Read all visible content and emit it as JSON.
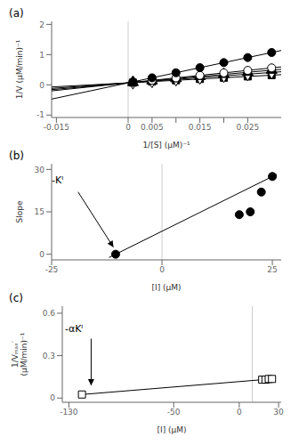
{
  "chart_data": [
    {
      "type": "scatter",
      "title": "(a)",
      "x_label": "1/[S] (μM)⁻¹",
      "y_label": "1/V (μM/min)⁻¹",
      "xlim": [
        -0.016,
        0.032
      ],
      "ylim": [
        -1.08,
        2.1
      ],
      "xticks": [
        -0.015,
        0,
        0.005,
        {
          "value": 0.01,
          "label": null
        },
        0.015,
        {
          "value": 0.02,
          "label": null
        },
        0.025
      ],
      "yticks": [
        -1,
        0,
        1,
        2
      ],
      "grid": false,
      "reference_line_x": 0,
      "series": [
        {
          "type": "line",
          "line_style": "solid",
          "color": "#000000",
          "x": [
            -0.016,
            0.032
          ],
          "values": [
            -0.071,
            0.337
          ]
        },
        {
          "type": "scatter",
          "marker": "square",
          "color": "#000000",
          "x": [
            0.001,
            0.005,
            0.01,
            0.015,
            0.02,
            0.025,
            0.03
          ],
          "values": [
            0.0735,
            0.1075,
            0.15,
            0.1925,
            0.235,
            0.2775,
            0.32
          ]
        },
        {
          "type": "line",
          "line_style": "solid",
          "color": "#000000",
          "x": [
            -0.016,
            0.032
          ],
          "values": [
            -0.119,
            0.433
          ]
        },
        {
          "type": "scatter",
          "marker": "diamond_open",
          "color": "#000000",
          "x": [
            0.001,
            0.005,
            0.01,
            0.015,
            0.02,
            0.025,
            0.03
          ],
          "values": [
            0.0765,
            0.1225,
            0.18,
            0.2375,
            0.295,
            0.3525,
            0.41
          ]
        },
        {
          "type": "line",
          "line_style": "solid",
          "color": "#000000",
          "x": [
            -0.016,
            0.032
          ],
          "values": [
            -0.159,
            0.513
          ]
        },
        {
          "type": "scatter",
          "marker": "triangle",
          "color": "#000000",
          "x": [
            0.001,
            0.005,
            0.01,
            0.015,
            0.02,
            0.025,
            0.03
          ],
          "values": [
            0.079,
            0.135,
            0.205,
            0.275,
            0.345,
            0.415,
            0.485
          ]
        },
        {
          "type": "line",
          "line_style": "solid",
          "color": "#000000",
          "x": [
            -0.016,
            0.032
          ],
          "values": [
            -0.199,
            0.593
          ]
        },
        {
          "type": "scatter",
          "marker": "circle_open",
          "color": "#000000",
          "x": [
            0.001,
            0.005,
            0.01,
            0.015,
            0.02,
            0.025,
            0.03
          ],
          "values": [
            0.0815,
            0.1475,
            0.23,
            0.3125,
            0.395,
            0.4775,
            0.56
          ]
        },
        {
          "type": "line",
          "line_style": "solid",
          "color": "#000000",
          "x": [
            -0.016,
            0.032
          ],
          "values": [
            -0.471,
            1.137
          ]
        },
        {
          "type": "scatter",
          "marker": "circle",
          "color": "#000000",
          "x": [
            0.001,
            0.005,
            0.01,
            0.015,
            0.02,
            0.025,
            0.03
          ],
          "values": [
            0.0985,
            0.2325,
            0.4,
            0.5675,
            0.735,
            0.9025,
            1.07
          ]
        }
      ],
      "annotations": [],
      "arrows": []
    },
    {
      "type": "scatter",
      "title": "(b)",
      "x_label": "[I] (μM)",
      "y_label": "Slope",
      "xlim": [
        -25,
        27
      ],
      "ylim": [
        -2,
        32
      ],
      "xticks": [
        -25,
        0,
        25
      ],
      "yticks": [
        0,
        15,
        30
      ],
      "grid": false,
      "reference_line_x": 0,
      "series": [
        {
          "type": "line",
          "line_style": "solid",
          "color": "#000000",
          "x": [
            -12,
            26
          ],
          "values": [
            -1.161972,
            28.274648
          ]
        },
        {
          "type": "scatter",
          "marker": "circle",
          "color": "#000000",
          "x": [
            17.5,
            20.0,
            22.5,
            25.0
          ],
          "values": [
            14.0,
            15.0,
            22.0,
            27.5
          ]
        },
        {
          "type": "scatter",
          "marker": "circle",
          "color": "#000000",
          "x": [
            -10.5
          ],
          "values": [
            0.0
          ]
        }
      ],
      "annotations": [
        {
          "text": "-Kᴵ",
          "x": -25,
          "y": 25
        }
      ],
      "arrows": [
        {
          "x1": -19,
          "y1": 22,
          "x2": -11,
          "y2": 2.5,
          "color": "#000000"
        }
      ]
    },
    {
      "type": "scatter",
      "title": "(c)",
      "x_label": "[I] (μM)",
      "y_label": "1/Vₘₐₓ′\n(μM/min)⁻¹",
      "xlim": [
        -135,
        32
      ],
      "ylim": [
        -0.03,
        0.65
      ],
      "xticks": [
        -130,
        -50,
        0,
        30
      ],
      "yticks": [
        0,
        0.3,
        0.6
      ],
      "grid": false,
      "reference_line_x": 10,
      "series": [
        {
          "type": "line",
          "line_style": "solid",
          "color": "#000000",
          "x": [
            -121,
            26
          ],
          "values": [
            0.024239,
            0.136115
          ]
        },
        {
          "type": "scatter",
          "marker": "square_open",
          "color": "#000000",
          "x": [
            17.5,
            20.0,
            22.5,
            25.0
          ],
          "values": [
            0.13,
            0.13,
            0.135,
            0.135
          ]
        },
        {
          "type": "scatter",
          "marker": "square_open",
          "color": "#000000",
          "x": [
            -120
          ],
          "values": [
            0.025
          ]
        }
      ],
      "annotations": [
        {
          "text": "-αKᴵ",
          "x": -133,
          "y": 0.47
        }
      ],
      "arrows": [
        {
          "x1": -113,
          "y1": 0.42,
          "x2": -113,
          "y2": 0.09,
          "color": "#000000"
        }
      ]
    }
  ]
}
